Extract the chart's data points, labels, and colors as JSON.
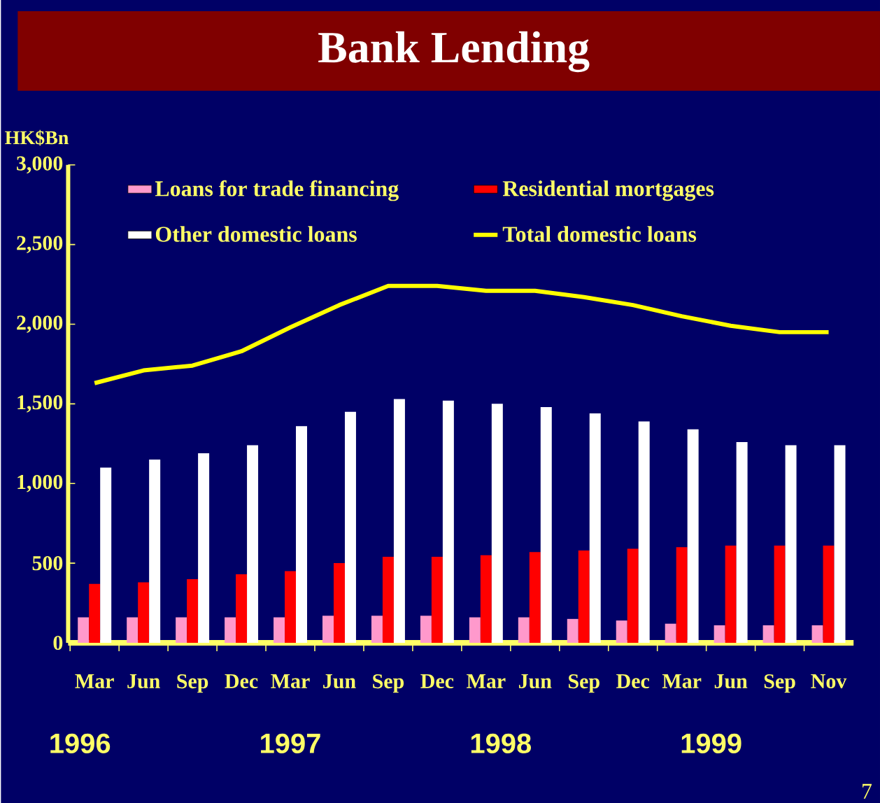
{
  "chart_data": {
    "type": "bar",
    "title": "Bank Lending",
    "ylabel": "HK$Bn",
    "categories": [
      "Mar",
      "Jun",
      "Sep",
      "Dec",
      "Mar",
      "Jun",
      "Sep",
      "Dec",
      "Mar",
      "Jun",
      "Sep",
      "Dec",
      "Mar",
      "Jun",
      "Sep",
      "Nov"
    ],
    "ylim": [
      0,
      3000
    ],
    "yticks": [
      {
        "value": 0,
        "label": "0"
      },
      {
        "value": 500,
        "label": "500"
      },
      {
        "value": 1000,
        "label": "1,000"
      },
      {
        "value": 1500,
        "label": "1,500"
      },
      {
        "value": 2000,
        "label": "2,000"
      },
      {
        "value": 2500,
        "label": "2,500"
      },
      {
        "value": 3000,
        "label": "3,000"
      }
    ],
    "grid": false,
    "legend": "top",
    "series": [
      {
        "name": "Loans for trade financing",
        "color": "#ff99cc",
        "values": [
          160,
          160,
          160,
          160,
          160,
          170,
          170,
          170,
          160,
          160,
          150,
          140,
          120,
          110,
          110,
          110
        ]
      },
      {
        "name": "Residential mortgages",
        "color": "#ff0000",
        "values": [
          370,
          380,
          400,
          430,
          450,
          500,
          540,
          540,
          550,
          570,
          580,
          590,
          600,
          610,
          610,
          610
        ]
      },
      {
        "name": "Other domestic loans",
        "color": "#ffffff",
        "values": [
          1100,
          1150,
          1190,
          1240,
          1360,
          1450,
          1530,
          1520,
          1500,
          1480,
          1440,
          1390,
          1340,
          1260,
          1240,
          1240
        ]
      },
      {
        "name": "Total domestic loans",
        "type": "line",
        "color": "#ffff00",
        "values": [
          1630,
          1710,
          1740,
          1830,
          1980,
          2120,
          2240,
          2240,
          2210,
          2210,
          2170,
          2120,
          2050,
          1990,
          1950,
          1950
        ]
      }
    ],
    "annotations": [
      "1996",
      "1997",
      "1998",
      "1999",
      "7"
    ]
  }
}
